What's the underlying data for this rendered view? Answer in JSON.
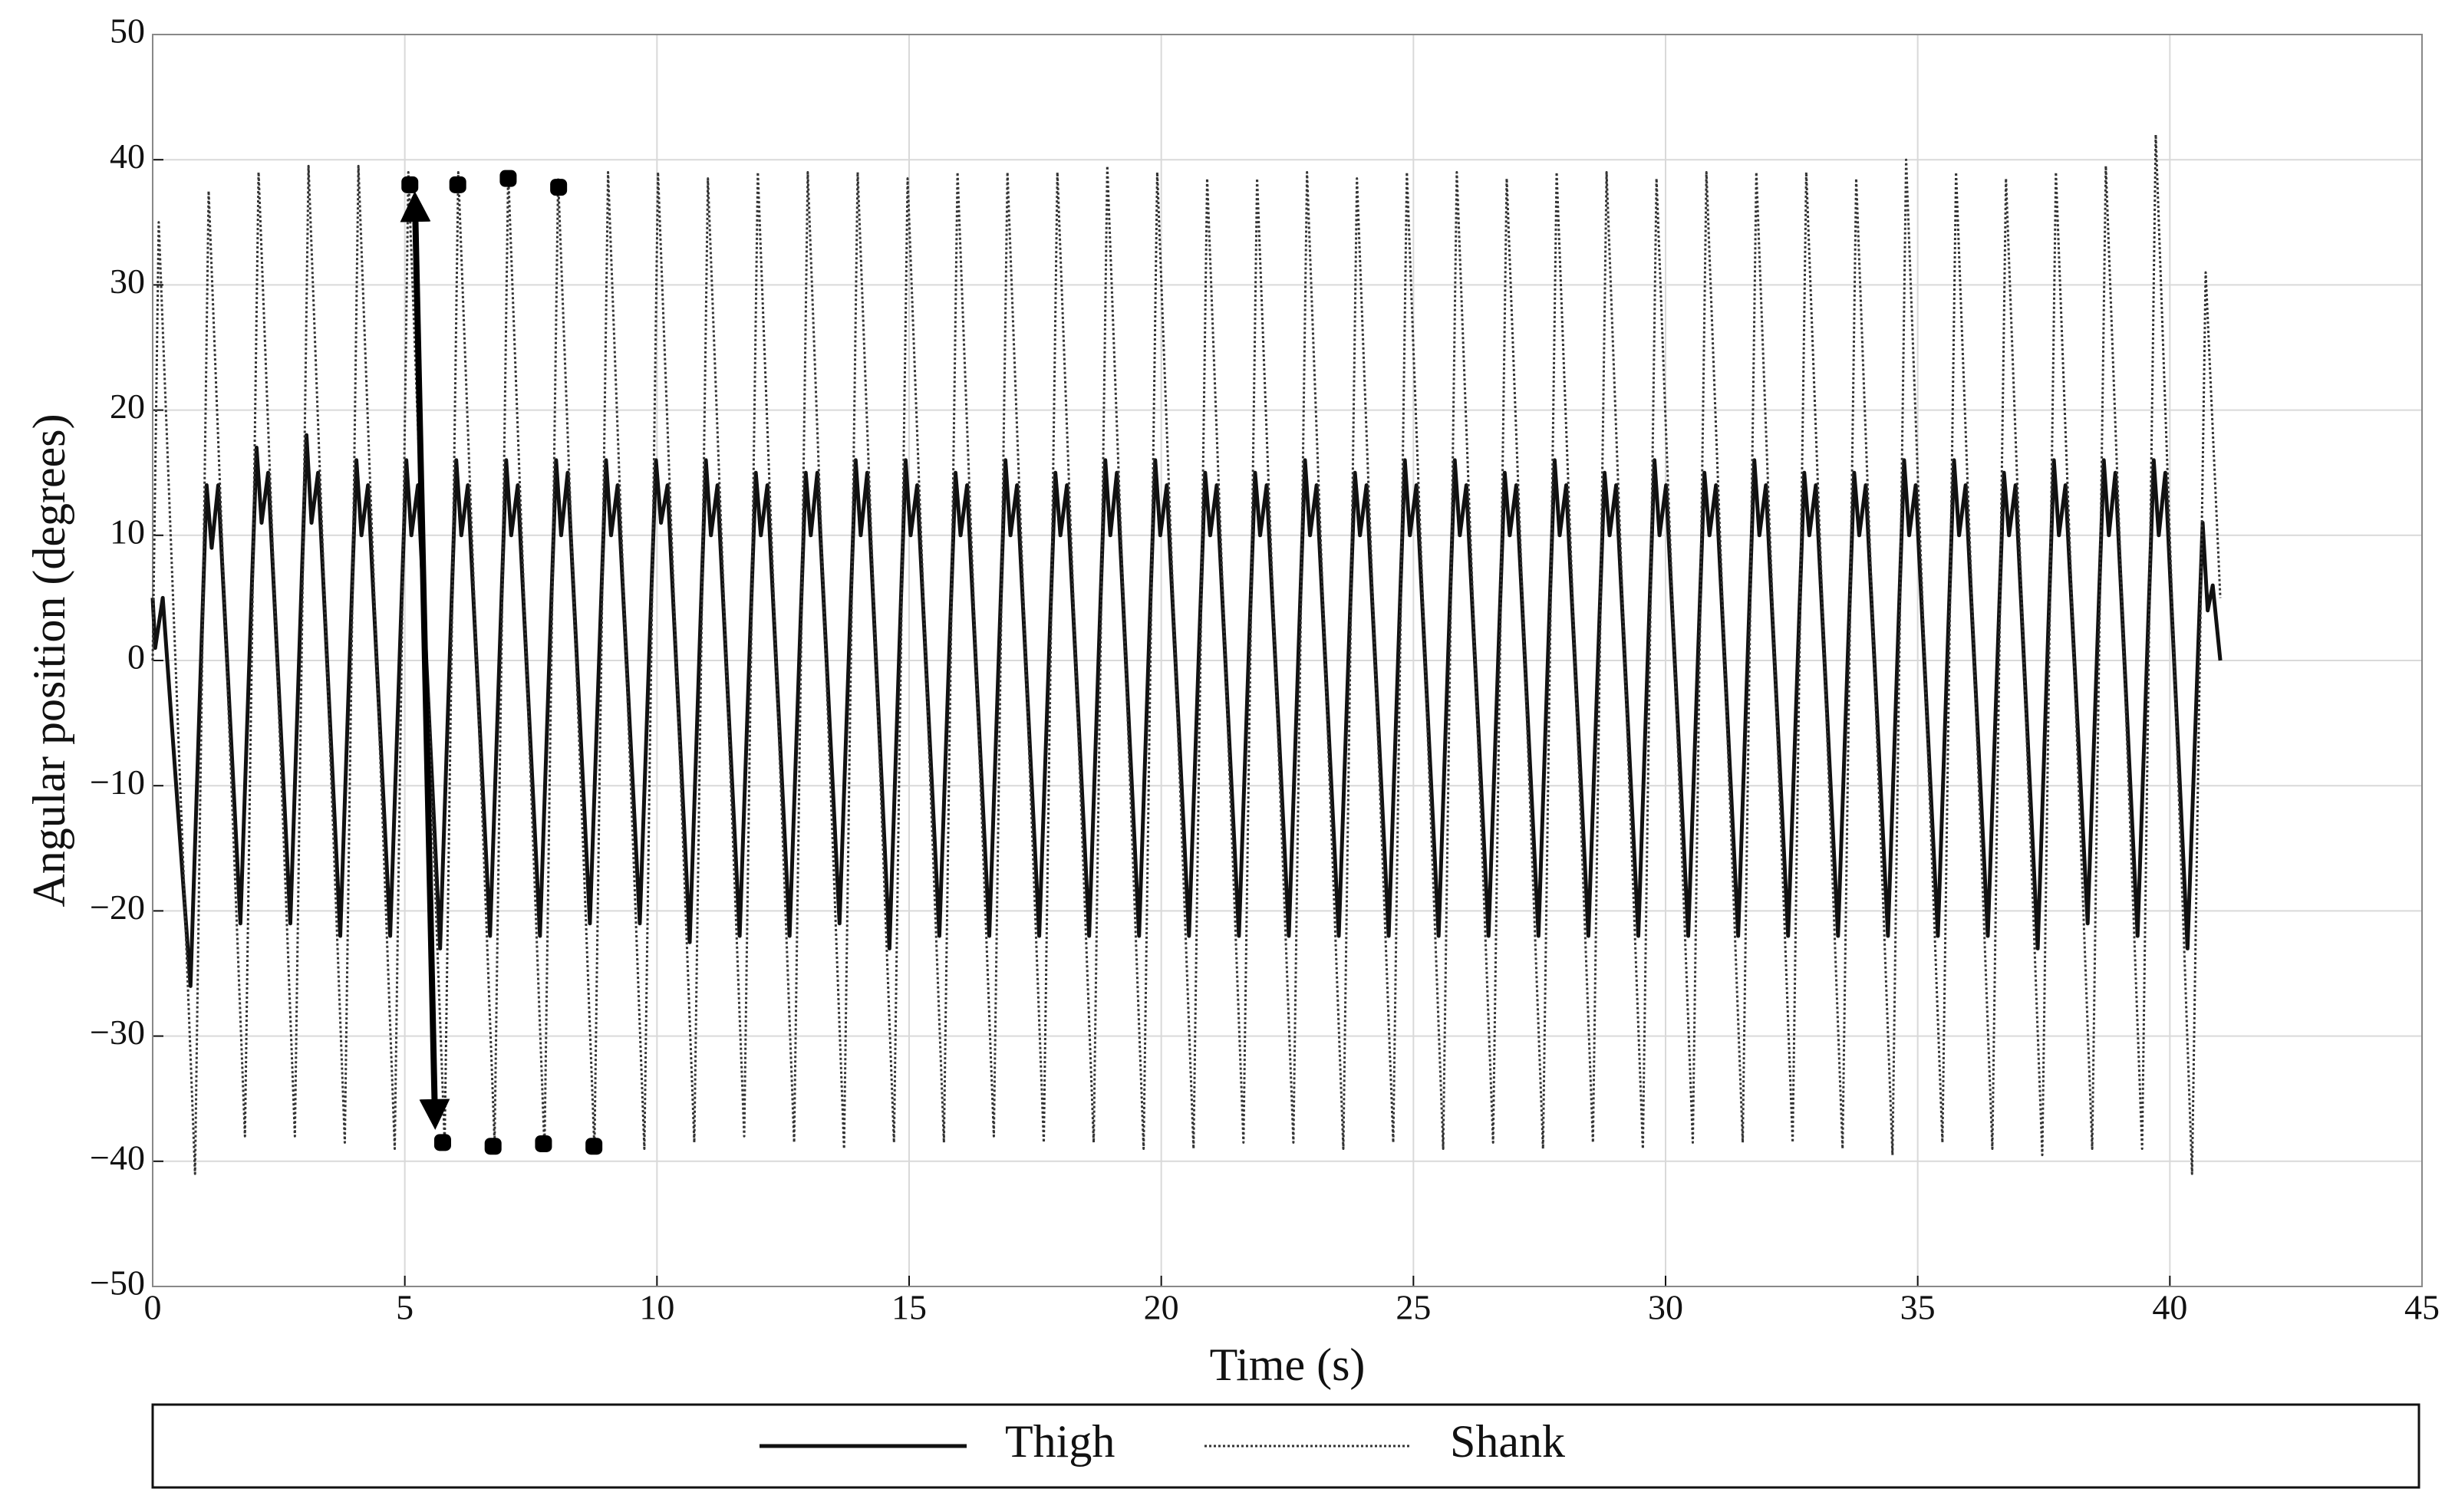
{
  "chart_data": {
    "type": "line",
    "xlabel": "Time (s)",
    "ylabel": "Angular position (degrees)",
    "xlim": [
      0,
      45
    ],
    "ylim": [
      -50,
      50
    ],
    "xticks": [
      0,
      5,
      10,
      15,
      20,
      25,
      30,
      35,
      40,
      45
    ],
    "yticks": [
      {
        "value": -50,
        "label": "−50"
      },
      {
        "value": -40,
        "label": "−40"
      },
      {
        "value": -30,
        "label": "−30"
      },
      {
        "value": -20,
        "label": "−20"
      },
      {
        "value": -10,
        "label": "−10"
      },
      0,
      10,
      20,
      30,
      40,
      50
    ],
    "grid": true,
    "legend": "bottom",
    "series": [
      {
        "name": "Thigh",
        "color": "#111111",
        "dash": "solid",
        "x": [
          0,
          0.05,
          0.2,
          0.75,
          1.07,
          1.17,
          1.3,
          1.74,
          2.06,
          2.16,
          2.29,
          2.73,
          3.05,
          3.15,
          3.28,
          3.72,
          4.04,
          4.14,
          4.27,
          4.71,
          5.03,
          5.13,
          5.26,
          5.7,
          6.02,
          6.12,
          6.25,
          6.69,
          7.01,
          7.11,
          7.24,
          7.68,
          8.0,
          8.1,
          8.23,
          8.67,
          8.99,
          9.09,
          9.22,
          9.66,
          9.98,
          10.08,
          10.21,
          10.65,
          10.97,
          11.07,
          11.2,
          11.64,
          11.96,
          12.06,
          12.19,
          12.63,
          12.95,
          13.05,
          13.18,
          13.62,
          13.94,
          14.04,
          14.17,
          14.61,
          14.93,
          15.03,
          15.16,
          15.6,
          15.92,
          16.02,
          16.15,
          16.59,
          16.91,
          17.01,
          17.14,
          17.58,
          17.9,
          18.0,
          18.13,
          18.57,
          18.89,
          18.99,
          19.12,
          19.56,
          19.88,
          19.98,
          20.11,
          20.55,
          20.87,
          20.97,
          21.1,
          21.54,
          21.86,
          21.96,
          22.09,
          22.53,
          22.85,
          22.95,
          23.08,
          23.52,
          23.84,
          23.94,
          24.07,
          24.51,
          24.83,
          24.93,
          25.06,
          25.5,
          25.82,
          25.92,
          26.05,
          26.49,
          26.81,
          26.91,
          27.04,
          27.48,
          27.8,
          27.9,
          28.03,
          28.47,
          28.79,
          28.89,
          29.02,
          29.46,
          29.78,
          29.88,
          30.01,
          30.45,
          30.77,
          30.87,
          31.0,
          31.44,
          31.76,
          31.86,
          31.99,
          32.43,
          32.75,
          32.85,
          32.98,
          33.42,
          33.74,
          33.84,
          33.97,
          34.41,
          34.73,
          34.83,
          34.96,
          35.4,
          35.72,
          35.82,
          35.95,
          36.39,
          36.71,
          36.81,
          36.94,
          37.38,
          37.7,
          37.8,
          37.93,
          38.37,
          38.69,
          38.79,
          38.92,
          39.36,
          39.68,
          39.78,
          39.91,
          40.35,
          40.65,
          40.75,
          40.85,
          41.0
        ],
        "values": [
          5,
          1,
          5,
          -26,
          14,
          9,
          14,
          -21,
          17,
          11,
          15,
          -21,
          18,
          11,
          15,
          -22,
          16,
          10,
          14,
          -22,
          16,
          10,
          14,
          -23,
          16,
          10,
          14,
          -22,
          16,
          10,
          14,
          -22,
          16,
          10,
          15,
          -21,
          16,
          10,
          14,
          -21,
          16,
          11,
          14,
          -22.5,
          16,
          10,
          14,
          -22,
          15,
          10,
          14,
          -22,
          15,
          10,
          15,
          -21,
          16,
          10,
          15,
          -23,
          16,
          10,
          14,
          -22,
          15,
          10,
          14,
          -22,
          16,
          10,
          14,
          -22,
          15,
          10,
          14,
          -22,
          16,
          10,
          15,
          -22,
          16,
          10,
          14,
          -22,
          15,
          10,
          14,
          -22,
          15,
          10,
          14,
          -22,
          16,
          10,
          14,
          -22,
          15,
          10,
          14,
          -22,
          16,
          10,
          14,
          -22,
          16,
          10,
          14,
          -22,
          15,
          10,
          14,
          -22,
          16,
          10,
          14,
          -22,
          15,
          10,
          14,
          -22,
          16,
          10,
          14,
          -22,
          15,
          10,
          14,
          -22,
          16,
          10,
          14,
          -22,
          15,
          10,
          14,
          -22,
          15,
          10,
          14,
          -22,
          16,
          10,
          14,
          -22,
          16,
          10,
          14,
          -22,
          15,
          10,
          14,
          -23,
          16,
          10,
          14,
          -21,
          16,
          10,
          15,
          -22,
          16,
          10,
          15,
          -23,
          11,
          4,
          6,
          0
        ]
      },
      {
        "name": "Shank",
        "color": "#333333",
        "dash": "dotted",
        "x": [
          0,
          0.12,
          0.84,
          1.11,
          1.83,
          2.1,
          2.82,
          3.09,
          3.81,
          4.08,
          4.8,
          5.07,
          5.79,
          6.06,
          6.78,
          7.05,
          7.77,
          8.04,
          8.76,
          9.03,
          9.75,
          10.02,
          10.74,
          11.01,
          11.73,
          12.0,
          12.72,
          12.99,
          13.71,
          13.98,
          14.7,
          14.97,
          15.69,
          15.96,
          16.68,
          16.95,
          17.67,
          17.94,
          18.66,
          18.93,
          19.65,
          19.92,
          20.64,
          20.91,
          21.63,
          21.9,
          22.62,
          22.89,
          23.61,
          23.88,
          24.6,
          24.87,
          25.59,
          25.86,
          26.58,
          26.85,
          27.57,
          27.84,
          28.56,
          28.83,
          29.55,
          29.82,
          30.54,
          30.81,
          31.53,
          31.8,
          32.52,
          32.79,
          33.51,
          33.78,
          34.5,
          34.77,
          35.49,
          35.76,
          36.48,
          36.75,
          37.47,
          37.74,
          38.46,
          38.73,
          39.45,
          39.72,
          40.44,
          40.71,
          41.0
        ],
        "values": [
          0,
          35,
          -41,
          37.5,
          -38,
          39,
          -38,
          39.5,
          -38.5,
          39.5,
          -39,
          39,
          -38.5,
          39,
          -38.5,
          39,
          -39,
          38.5,
          -39,
          39,
          -39,
          39,
          -38.5,
          38.5,
          -38,
          39,
          -38.5,
          39,
          -39,
          39,
          -38.5,
          38.5,
          -38.5,
          39,
          -38,
          39,
          -38.5,
          39,
          -38.5,
          39.5,
          -39,
          39,
          -39,
          38.5,
          -38.5,
          38.5,
          -38.5,
          39,
          -39,
          38.5,
          -38.5,
          39,
          -39,
          39,
          -38.5,
          38.5,
          -39,
          39,
          -38.5,
          39,
          -39,
          38.5,
          -38.5,
          39,
          -38.5,
          39,
          -38.5,
          39,
          -39,
          38.5,
          -39.5,
          40,
          -38.5,
          39,
          -39,
          38.5,
          -39.5,
          39,
          -39,
          39.5,
          -39,
          42,
          -41,
          31,
          5
        ]
      }
    ],
    "markers": {
      "x": [
        5.1,
        6.05,
        7.05,
        8.05,
        5.75,
        6.75,
        7.75,
        8.75
      ],
      "values": [
        38,
        38,
        38.5,
        37.8,
        -38.5,
        -38.8,
        -38.6,
        -38.8
      ]
    },
    "arrow": {
      "x": [
        5.2,
        5.6
      ],
      "values": [
        37,
        -37
      ]
    }
  }
}
